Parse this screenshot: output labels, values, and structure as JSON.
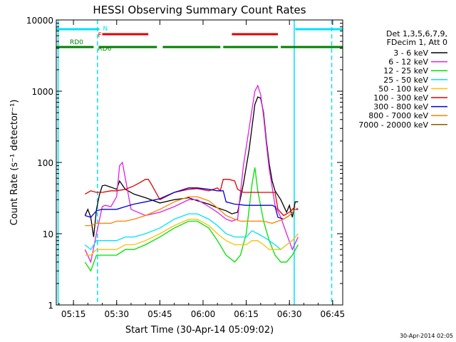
{
  "chart_data": {
    "type": "line",
    "title": "HESSI Observing Summary Count Rates",
    "xlabel": "Start Time (30-Apr-14 05:09:02)",
    "ylabel": "Count Rate (s⁻¹ detector⁻¹)",
    "x_unit": "time of day (HH:MM)",
    "xlim": [
      "05:09:02",
      "06:48:30"
    ],
    "ylim": [
      1,
      10000
    ],
    "y_scale": "log",
    "x_ticks": [
      "05:15",
      "05:30",
      "05:45",
      "06:00",
      "06:15",
      "06:30",
      "06:45"
    ],
    "y_ticks": [
      "1",
      "10",
      "100",
      "1000",
      "10000"
    ],
    "footer_timestamp": "30-Apr-2014 02:05",
    "legend": {
      "placement": "right, outside plot",
      "header": [
        "Det 1,3,5,6,7,9,",
        "FDecim 1, Att 0"
      ]
    },
    "series": [
      {
        "name": "3 - 6 keV",
        "color": "#000000",
        "points": [
          [
            "05:19",
            18
          ],
          [
            "05:20",
            22
          ],
          [
            "05:21",
            17
          ],
          [
            "05:22",
            9
          ],
          [
            "05:23",
            22
          ],
          [
            "05:24",
            35
          ],
          [
            "05:25",
            47
          ],
          [
            "05:26",
            48
          ],
          [
            "05:28",
            45
          ],
          [
            "05:30",
            42
          ],
          [
            "05:31",
            55
          ],
          [
            "05:33",
            42
          ],
          [
            "05:36",
            36
          ],
          [
            "05:40",
            32
          ],
          [
            "05:45",
            27
          ],
          [
            "05:50",
            30
          ],
          [
            "05:55",
            32
          ],
          [
            "05:58",
            29
          ],
          [
            "06:02",
            26
          ],
          [
            "06:05",
            23
          ],
          [
            "06:08",
            21
          ],
          [
            "06:10",
            19
          ],
          [
            "06:12",
            20
          ],
          [
            "06:14",
            50
          ],
          [
            "06:16",
            150
          ],
          [
            "06:18",
            650
          ],
          [
            "06:19",
            830
          ],
          [
            "06:20",
            800
          ],
          [
            "06:21",
            500
          ],
          [
            "06:22",
            200
          ],
          [
            "06:23",
            95
          ],
          [
            "06:24",
            55
          ],
          [
            "06:25",
            40
          ],
          [
            "06:27",
            30
          ],
          [
            "06:29",
            20
          ],
          [
            "06:30",
            25
          ],
          [
            "06:31",
            17
          ],
          [
            "06:32",
            28
          ],
          [
            "06:33",
            28
          ]
        ]
      },
      {
        "name": "6 - 12 keV",
        "color": "#e020e0",
        "points": [
          [
            "05:19",
            6
          ],
          [
            "05:21",
            4
          ],
          [
            "05:23",
            10
          ],
          [
            "05:25",
            24
          ],
          [
            "05:26",
            25
          ],
          [
            "05:28",
            24
          ],
          [
            "05:30",
            33
          ],
          [
            "05:31",
            90
          ],
          [
            "05:32",
            100
          ],
          [
            "05:33",
            60
          ],
          [
            "05:35",
            22
          ],
          [
            "05:40",
            18
          ],
          [
            "05:45",
            20
          ],
          [
            "05:50",
            24
          ],
          [
            "05:55",
            30
          ],
          [
            "05:58",
            30
          ],
          [
            "06:02",
            24
          ],
          [
            "06:05",
            20
          ],
          [
            "06:08",
            16
          ],
          [
            "06:10",
            15
          ],
          [
            "06:12",
            16
          ],
          [
            "06:14",
            90
          ],
          [
            "06:16",
            300
          ],
          [
            "06:18",
            1000
          ],
          [
            "06:19",
            1200
          ],
          [
            "06:20",
            900
          ],
          [
            "06:21",
            450
          ],
          [
            "06:22",
            180
          ],
          [
            "06:23",
            80
          ],
          [
            "06:24",
            45
          ],
          [
            "06:25",
            25
          ],
          [
            "06:27",
            17
          ],
          [
            "06:29",
            10
          ],
          [
            "06:31",
            6
          ],
          [
            "06:33",
            9
          ]
        ]
      },
      {
        "name": "12 - 25 keV",
        "color": "#00e000",
        "points": [
          [
            "05:19",
            4
          ],
          [
            "05:21",
            3
          ],
          [
            "05:23",
            5
          ],
          [
            "05:25",
            5
          ],
          [
            "05:28",
            5
          ],
          [
            "05:30",
            5
          ],
          [
            "05:33",
            6
          ],
          [
            "05:36",
            6
          ],
          [
            "05:40",
            7
          ],
          [
            "05:45",
            9
          ],
          [
            "05:50",
            12
          ],
          [
            "05:55",
            15
          ],
          [
            "05:58",
            15
          ],
          [
            "06:02",
            12
          ],
          [
            "06:05",
            8
          ],
          [
            "06:08",
            5
          ],
          [
            "06:11",
            4
          ],
          [
            "06:13",
            5
          ],
          [
            "06:15",
            10
          ],
          [
            "06:17",
            50
          ],
          [
            "06:18",
            85
          ],
          [
            "06:19",
            40
          ],
          [
            "06:21",
            15
          ],
          [
            "06:23",
            8
          ],
          [
            "06:25",
            5
          ],
          [
            "06:27",
            4
          ],
          [
            "06:29",
            4
          ],
          [
            "06:31",
            5
          ],
          [
            "06:33",
            7
          ]
        ]
      },
      {
        "name": "25 - 50 keV",
        "color": "#00e0ff",
        "points": [
          [
            "05:19",
            7
          ],
          [
            "05:21",
            6
          ],
          [
            "05:23",
            8
          ],
          [
            "05:25",
            8
          ],
          [
            "05:28",
            8
          ],
          [
            "05:30",
            8
          ],
          [
            "05:33",
            9
          ],
          [
            "05:36",
            9
          ],
          [
            "05:40",
            10
          ],
          [
            "05:45",
            12
          ],
          [
            "05:50",
            16
          ],
          [
            "05:55",
            19
          ],
          [
            "05:58",
            19
          ],
          [
            "06:02",
            16
          ],
          [
            "06:05",
            13
          ],
          [
            "06:08",
            10
          ],
          [
            "06:11",
            9
          ],
          [
            "06:13",
            9
          ],
          [
            "06:15",
            9
          ],
          [
            "06:17",
            11
          ],
          [
            "06:19",
            10
          ],
          [
            "06:21",
            9
          ],
          [
            "06:23",
            8
          ],
          [
            "06:25",
            7
          ],
          [
            "06:27",
            6
          ],
          [
            "06:29",
            7
          ],
          [
            "06:31",
            8
          ],
          [
            "06:33",
            10
          ]
        ]
      },
      {
        "name": "50 - 100 keV",
        "color": "#ffc000",
        "points": [
          [
            "05:19",
            5
          ],
          [
            "05:21",
            5
          ],
          [
            "05:23",
            6
          ],
          [
            "05:25",
            6
          ],
          [
            "05:28",
            6
          ],
          [
            "05:30",
            6
          ],
          [
            "05:33",
            7
          ],
          [
            "05:36",
            7
          ],
          [
            "05:40",
            8
          ],
          [
            "05:45",
            10
          ],
          [
            "05:50",
            13
          ],
          [
            "05:55",
            16
          ],
          [
            "05:58",
            16
          ],
          [
            "06:02",
            13
          ],
          [
            "06:05",
            10
          ],
          [
            "06:08",
            8
          ],
          [
            "06:11",
            7
          ],
          [
            "06:13",
            7
          ],
          [
            "06:15",
            7
          ],
          [
            "06:17",
            8
          ],
          [
            "06:19",
            8
          ],
          [
            "06:21",
            7
          ],
          [
            "06:23",
            6
          ],
          [
            "06:25",
            6
          ],
          [
            "06:27",
            6
          ],
          [
            "06:29",
            7
          ],
          [
            "06:31",
            8
          ],
          [
            "06:33",
            10
          ]
        ]
      },
      {
        "name": "100 - 300 keV",
        "color": "#e00000",
        "points": [
          [
            "05:19",
            36
          ],
          [
            "05:21",
            40
          ],
          [
            "05:23",
            38
          ],
          [
            "05:25",
            38
          ],
          [
            "05:28",
            40
          ],
          [
            "05:30",
            40
          ],
          [
            "05:33",
            42
          ],
          [
            "05:36",
            47
          ],
          [
            "05:38",
            52
          ],
          [
            "05:40",
            58
          ],
          [
            "05:41",
            58
          ],
          [
            "05:42",
            50
          ],
          [
            "05:45",
            30
          ],
          [
            "05:50",
            38
          ],
          [
            "05:55",
            42
          ],
          [
            "05:58",
            43
          ],
          [
            "06:02",
            40
          ],
          [
            "06:05",
            44
          ],
          [
            "06:06",
            40
          ],
          [
            "06:07",
            58
          ],
          [
            "06:09",
            58
          ],
          [
            "06:11",
            55
          ],
          [
            "06:12",
            42
          ],
          [
            "06:14",
            38
          ],
          [
            "06:18",
            38
          ],
          [
            "06:22",
            38
          ],
          [
            "06:25",
            38
          ],
          [
            "06:26",
            22
          ],
          [
            "06:28",
            18
          ],
          [
            "06:30",
            20
          ],
          [
            "06:32",
            24
          ]
        ]
      },
      {
        "name": "300 - 800 keV",
        "color": "#0000e0",
        "points": [
          [
            "05:19",
            18
          ],
          [
            "05:21",
            17
          ],
          [
            "05:23",
            21
          ],
          [
            "05:25",
            22
          ],
          [
            "05:28",
            22
          ],
          [
            "05:30",
            22
          ],
          [
            "05:33",
            24
          ],
          [
            "05:36",
            26
          ],
          [
            "05:40",
            28
          ],
          [
            "05:45",
            31
          ],
          [
            "05:50",
            38
          ],
          [
            "05:55",
            44
          ],
          [
            "05:58",
            44
          ],
          [
            "06:02",
            42
          ],
          [
            "06:05",
            40
          ],
          [
            "06:07",
            40
          ],
          [
            "06:08",
            28
          ],
          [
            "06:11",
            26
          ],
          [
            "06:15",
            25
          ],
          [
            "06:20",
            25
          ],
          [
            "06:24",
            25
          ],
          [
            "06:25",
            24
          ],
          [
            "06:26",
            17
          ],
          [
            "06:28",
            16
          ],
          [
            "06:30",
            18
          ],
          [
            "06:32",
            22
          ],
          [
            "06:33",
            22
          ]
        ]
      },
      {
        "name": "800 - 7000 keV",
        "color": "#ff8000",
        "points": [
          [
            "05:19",
            13
          ],
          [
            "05:21",
            13
          ],
          [
            "05:23",
            14
          ],
          [
            "05:25",
            14
          ],
          [
            "05:28",
            14
          ],
          [
            "05:30",
            15
          ],
          [
            "05:33",
            15
          ],
          [
            "05:36",
            16
          ],
          [
            "05:40",
            18
          ],
          [
            "05:45",
            22
          ],
          [
            "05:50",
            28
          ],
          [
            "05:55",
            33
          ],
          [
            "05:58",
            33
          ],
          [
            "06:02",
            29
          ],
          [
            "06:05",
            23
          ],
          [
            "06:08",
            18
          ],
          [
            "06:11",
            16
          ],
          [
            "06:13",
            15
          ],
          [
            "06:15",
            15
          ],
          [
            "06:18",
            15
          ],
          [
            "06:21",
            15
          ],
          [
            "06:24",
            14
          ],
          [
            "06:26",
            15
          ],
          [
            "06:28",
            16
          ],
          [
            "06:30",
            18
          ],
          [
            "06:32",
            22
          ],
          [
            "06:33",
            23
          ]
        ]
      },
      {
        "name": "7000 - 20000 keV",
        "color": "#8b5a00",
        "points": []
      }
    ],
    "attenuator_states": [
      {
        "label": "N",
        "color": "#00e0ff",
        "segments": [
          [
            "05:09:02",
            "05:24"
          ],
          [
            "06:32",
            "06:48:30"
          ]
        ]
      },
      {
        "label": "F",
        "color": "#e00000",
        "segments": [
          [
            "05:25",
            "05:41"
          ],
          [
            "06:10",
            "06:26"
          ]
        ]
      },
      {
        "label": "RD0",
        "color": "#008000",
        "segments": [
          [
            "05:09:02",
            "05:22"
          ]
        ]
      },
      {
        "label": "RD6",
        "color": "#008000",
        "segments": [
          [
            "05:24",
            "05:44"
          ],
          [
            "05:46",
            "06:06"
          ],
          [
            "06:07",
            "06:26"
          ],
          [
            "06:27",
            "06:48:30"
          ]
        ]
      }
    ],
    "vertical_markers": [
      {
        "time": "05:09:40",
        "color": "#00e0ff",
        "style": "solid"
      },
      {
        "time": "05:23:20",
        "color": "#00e0ff",
        "style": "dashed"
      },
      {
        "time": "06:31:40",
        "color": "#00e0ff",
        "style": "solid"
      },
      {
        "time": "06:44:40",
        "color": "#00e0ff",
        "style": "dashed"
      }
    ]
  }
}
